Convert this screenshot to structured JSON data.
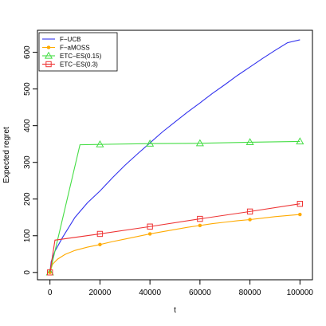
{
  "chart_data": {
    "type": "line",
    "title": "",
    "xlabel": "t",
    "ylabel": "Expected regret",
    "xlim": [
      -5000,
      105000
    ],
    "ylim": [
      -20,
      660
    ],
    "x_ticks": [
      0,
      20000,
      40000,
      60000,
      80000,
      100000
    ],
    "x_tick_labels": [
      "0",
      "20000",
      "40000",
      "60000",
      "80000",
      "100000"
    ],
    "y_ticks": [
      0,
      100,
      200,
      300,
      400,
      500,
      600
    ],
    "y_tick_labels": [
      "0",
      "100",
      "200",
      "300",
      "400",
      "500",
      "600"
    ],
    "grid": false,
    "legend_position": "top-left",
    "series": [
      {
        "name": "F−UCB",
        "color": "#3333ee",
        "marker": "none",
        "x": [
          0,
          500,
          2000,
          5000,
          10000,
          15000,
          20000,
          25000,
          30000,
          35000,
          40000,
          45000,
          50000,
          55000,
          60000,
          65000,
          70000,
          75000,
          80000,
          85000,
          90000,
          95000,
          100000
        ],
        "y": [
          0,
          30,
          58,
          95,
          150,
          190,
          222,
          258,
          292,
          323,
          353,
          383,
          410,
          437,
          462,
          488,
          512,
          537,
          560,
          583,
          605,
          626,
          634
        ],
        "marker_x": [],
        "marker_y": []
      },
      {
        "name": "F−aMOSS",
        "color": "#ffaa00",
        "marker": "dot",
        "x": [
          0,
          1000,
          3000,
          6000,
          10000,
          15000,
          20000,
          25000,
          30000,
          35000,
          40000,
          45000,
          50000,
          55000,
          60000,
          65000,
          70000,
          75000,
          80000,
          85000,
          90000,
          95000,
          100000
        ],
        "y": [
          0,
          22,
          36,
          49,
          60,
          69,
          76,
          84,
          91,
          98,
          105,
          111,
          117,
          123,
          128,
          133,
          137,
          141,
          144,
          148,
          152,
          155,
          158
        ],
        "marker_x": [
          0,
          20000,
          40000,
          60000,
          80000,
          100000
        ],
        "marker_y": [
          0,
          76,
          105,
          128,
          144,
          158
        ]
      },
      {
        "name": "ETC−ES(0.15)",
        "color": "#44dd44",
        "marker": "triangle",
        "x": [
          0,
          12000,
          20000,
          40000,
          60000,
          80000,
          100000
        ],
        "y": [
          0,
          348,
          349,
          351,
          352,
          355,
          357
        ],
        "marker_x": [
          0,
          20000,
          40000,
          60000,
          80000,
          100000
        ],
        "marker_y": [
          0,
          349,
          351,
          352,
          355,
          357
        ]
      },
      {
        "name": "ETC−ES(0.3)",
        "color": "#ee3333",
        "marker": "square",
        "x": [
          0,
          2000,
          20000,
          40000,
          60000,
          80000,
          100000
        ],
        "y": [
          0,
          88,
          105,
          125,
          146,
          166,
          187
        ],
        "marker_x": [
          0,
          20000,
          40000,
          60000,
          80000,
          100000
        ],
        "marker_y": [
          0,
          105,
          125,
          146,
          166,
          187
        ]
      }
    ]
  }
}
